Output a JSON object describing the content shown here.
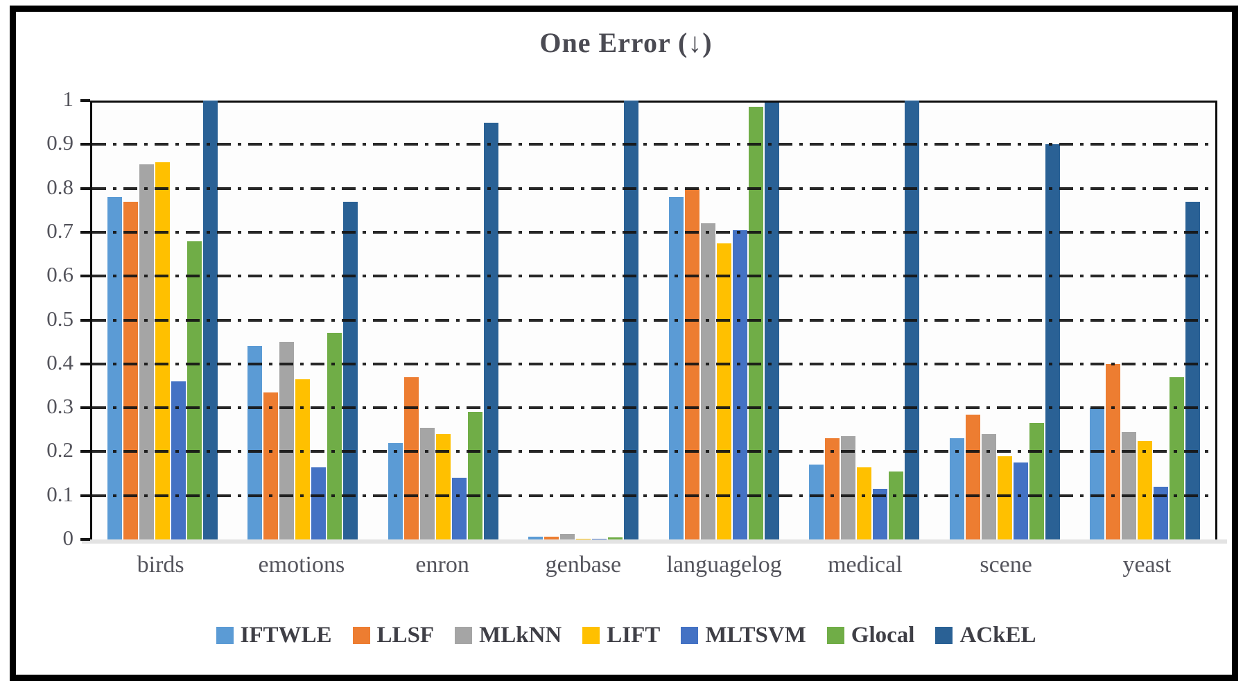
{
  "title": "One Error (↓)",
  "chart_data": {
    "type": "bar",
    "title": "One Error (↓)",
    "categories": [
      "birds",
      "emotions",
      "enron",
      "genbase",
      "languagelog",
      "medical",
      "scene",
      "yeast"
    ],
    "series": [
      {
        "name": "IFTWLE",
        "color": "#5B9BD5",
        "values": [
          0.78,
          0.44,
          0.22,
          0.007,
          0.78,
          0.17,
          0.23,
          0.3
        ]
      },
      {
        "name": "LLSF",
        "color": "#ED7D31",
        "values": [
          0.77,
          0.335,
          0.37,
          0.006,
          0.8,
          0.23,
          0.285,
          0.4
        ]
      },
      {
        "name": "MLkNN",
        "color": "#A5A5A5",
        "values": [
          0.855,
          0.45,
          0.255,
          0.013,
          0.72,
          0.235,
          0.24,
          0.245
        ]
      },
      {
        "name": "LIFT",
        "color": "#FFC000",
        "values": [
          0.86,
          0.365,
          0.24,
          0.002,
          0.675,
          0.165,
          0.19,
          0.225
        ]
      },
      {
        "name": "MLTSVM",
        "color": "#4472C4",
        "values": [
          0.36,
          0.165,
          0.14,
          0.002,
          0.705,
          0.115,
          0.175,
          0.12
        ]
      },
      {
        "name": "Glocal",
        "color": "#70AD47",
        "values": [
          0.68,
          0.47,
          0.29,
          0.005,
          0.985,
          0.155,
          0.265,
          0.37
        ]
      },
      {
        "name": "ACkEL",
        "color": "#2A6195",
        "values": [
          1.0,
          0.77,
          0.95,
          1.0,
          0.995,
          1.0,
          0.9,
          0.77
        ]
      }
    ],
    "ylim": [
      0,
      1
    ],
    "ytick_step": 0.1,
    "y_tick_labels": [
      "1",
      "0.9",
      "0.8",
      "0.7",
      "0.6",
      "0.5",
      "0.4",
      "0.3",
      "0.2",
      "0.1",
      "0"
    ],
    "grid": "horizontal dash-dot",
    "legend_position": "bottom"
  }
}
